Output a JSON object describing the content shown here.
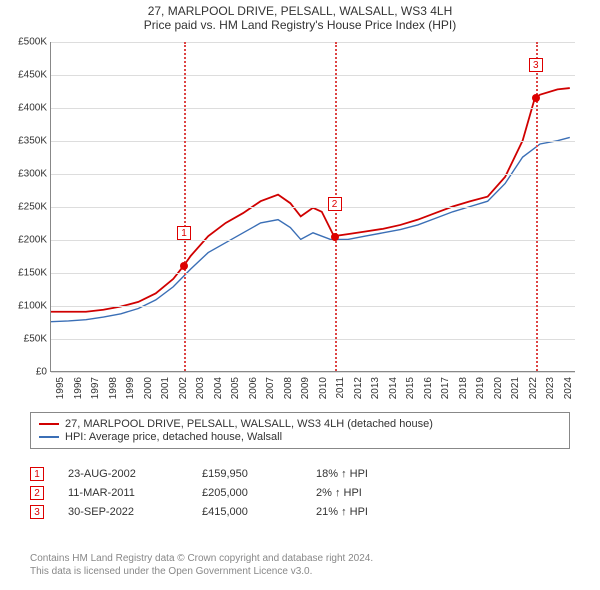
{
  "titles": {
    "line1": "27, MARLPOOL DRIVE, PELSALL, WALSALL, WS3 4LH",
    "line2": "Price paid vs. HM Land Registry's House Price Index (HPI)"
  },
  "chart": {
    "type": "line",
    "x_domain": [
      1995,
      2025
    ],
    "y_domain": [
      0,
      500000
    ],
    "y_ticks": [
      0,
      50000,
      100000,
      150000,
      200000,
      250000,
      300000,
      350000,
      400000,
      450000,
      500000
    ],
    "y_tick_labels": [
      "£0",
      "£50K",
      "£100K",
      "£150K",
      "£200K",
      "£250K",
      "£300K",
      "£350K",
      "£400K",
      "£450K",
      "£500K"
    ],
    "x_ticks": [
      1995,
      1996,
      1997,
      1998,
      1999,
      2000,
      2001,
      2002,
      2003,
      2004,
      2005,
      2006,
      2007,
      2008,
      2009,
      2010,
      2011,
      2012,
      2013,
      2014,
      2015,
      2016,
      2017,
      2018,
      2019,
      2020,
      2021,
      2022,
      2023,
      2024
    ],
    "grid_color": "#dddddd",
    "axis_color": "#888888",
    "background_color": "#ffffff",
    "series": [
      {
        "name": "property",
        "label": "27, MARLPOOL DRIVE, PELSALL, WALSALL, WS3 4LH (detached house)",
        "color": "#d00000",
        "width": 1.8,
        "points": [
          [
            1995.0,
            90000
          ],
          [
            1996.0,
            90000
          ],
          [
            1997.0,
            90000
          ],
          [
            1998.0,
            93000
          ],
          [
            1999.0,
            98000
          ],
          [
            2000.0,
            105000
          ],
          [
            2001.0,
            118000
          ],
          [
            2002.0,
            140000
          ],
          [
            2002.6,
            160000
          ],
          [
            2003.0,
            175000
          ],
          [
            2004.0,
            205000
          ],
          [
            2005.0,
            225000
          ],
          [
            2006.0,
            240000
          ],
          [
            2007.0,
            258000
          ],
          [
            2008.0,
            268000
          ],
          [
            2008.7,
            255000
          ],
          [
            2009.3,
            235000
          ],
          [
            2010.0,
            248000
          ],
          [
            2010.5,
            242000
          ],
          [
            2011.2,
            205000
          ],
          [
            2012.0,
            208000
          ],
          [
            2013.0,
            212000
          ],
          [
            2014.0,
            216000
          ],
          [
            2015.0,
            222000
          ],
          [
            2016.0,
            230000
          ],
          [
            2017.0,
            240000
          ],
          [
            2018.0,
            250000
          ],
          [
            2019.0,
            258000
          ],
          [
            2020.0,
            265000
          ],
          [
            2021.0,
            295000
          ],
          [
            2022.0,
            350000
          ],
          [
            2022.7,
            415000
          ],
          [
            2023.0,
            420000
          ],
          [
            2024.0,
            428000
          ],
          [
            2024.7,
            430000
          ]
        ]
      },
      {
        "name": "hpi",
        "label": "HPI: Average price, detached house, Walsall",
        "color": "#3b6fb6",
        "width": 1.4,
        "points": [
          [
            1995.0,
            75000
          ],
          [
            1996.0,
            76000
          ],
          [
            1997.0,
            78000
          ],
          [
            1998.0,
            82000
          ],
          [
            1999.0,
            87000
          ],
          [
            2000.0,
            95000
          ],
          [
            2001.0,
            108000
          ],
          [
            2002.0,
            128000
          ],
          [
            2003.0,
            155000
          ],
          [
            2004.0,
            180000
          ],
          [
            2005.0,
            195000
          ],
          [
            2006.0,
            210000
          ],
          [
            2007.0,
            225000
          ],
          [
            2008.0,
            230000
          ],
          [
            2008.7,
            218000
          ],
          [
            2009.3,
            200000
          ],
          [
            2010.0,
            210000
          ],
          [
            2011.0,
            200000
          ],
          [
            2012.0,
            200000
          ],
          [
            2013.0,
            205000
          ],
          [
            2014.0,
            210000
          ],
          [
            2015.0,
            215000
          ],
          [
            2016.0,
            222000
          ],
          [
            2017.0,
            232000
          ],
          [
            2018.0,
            242000
          ],
          [
            2019.0,
            250000
          ],
          [
            2020.0,
            258000
          ],
          [
            2021.0,
            285000
          ],
          [
            2022.0,
            325000
          ],
          [
            2023.0,
            345000
          ],
          [
            2024.0,
            350000
          ],
          [
            2024.7,
            355000
          ]
        ]
      }
    ],
    "markers": [
      {
        "n": "1",
        "x": 2002.6,
        "y": 160000
      },
      {
        "n": "2",
        "x": 2011.2,
        "y": 205000
      },
      {
        "n": "3",
        "x": 2022.7,
        "y": 415000
      }
    ]
  },
  "legend": {
    "items": [
      {
        "color": "#d00000",
        "label": "27, MARLPOOL DRIVE, PELSALL, WALSALL, WS3 4LH (detached house)"
      },
      {
        "color": "#3b6fb6",
        "label": "HPI: Average price, detached house, Walsall"
      }
    ]
  },
  "transactions": [
    {
      "n": "1",
      "date": "23-AUG-2002",
      "price": "£159,950",
      "pct": "18% ↑ HPI"
    },
    {
      "n": "2",
      "date": "11-MAR-2011",
      "price": "£205,000",
      "pct": "2% ↑ HPI"
    },
    {
      "n": "3",
      "date": "30-SEP-2022",
      "price": "£415,000",
      "pct": "21% ↑ HPI"
    }
  ],
  "attribution": {
    "line1": "Contains HM Land Registry data © Crown copyright and database right 2024.",
    "line2": "This data is licensed under the Open Government Licence v3.0."
  }
}
